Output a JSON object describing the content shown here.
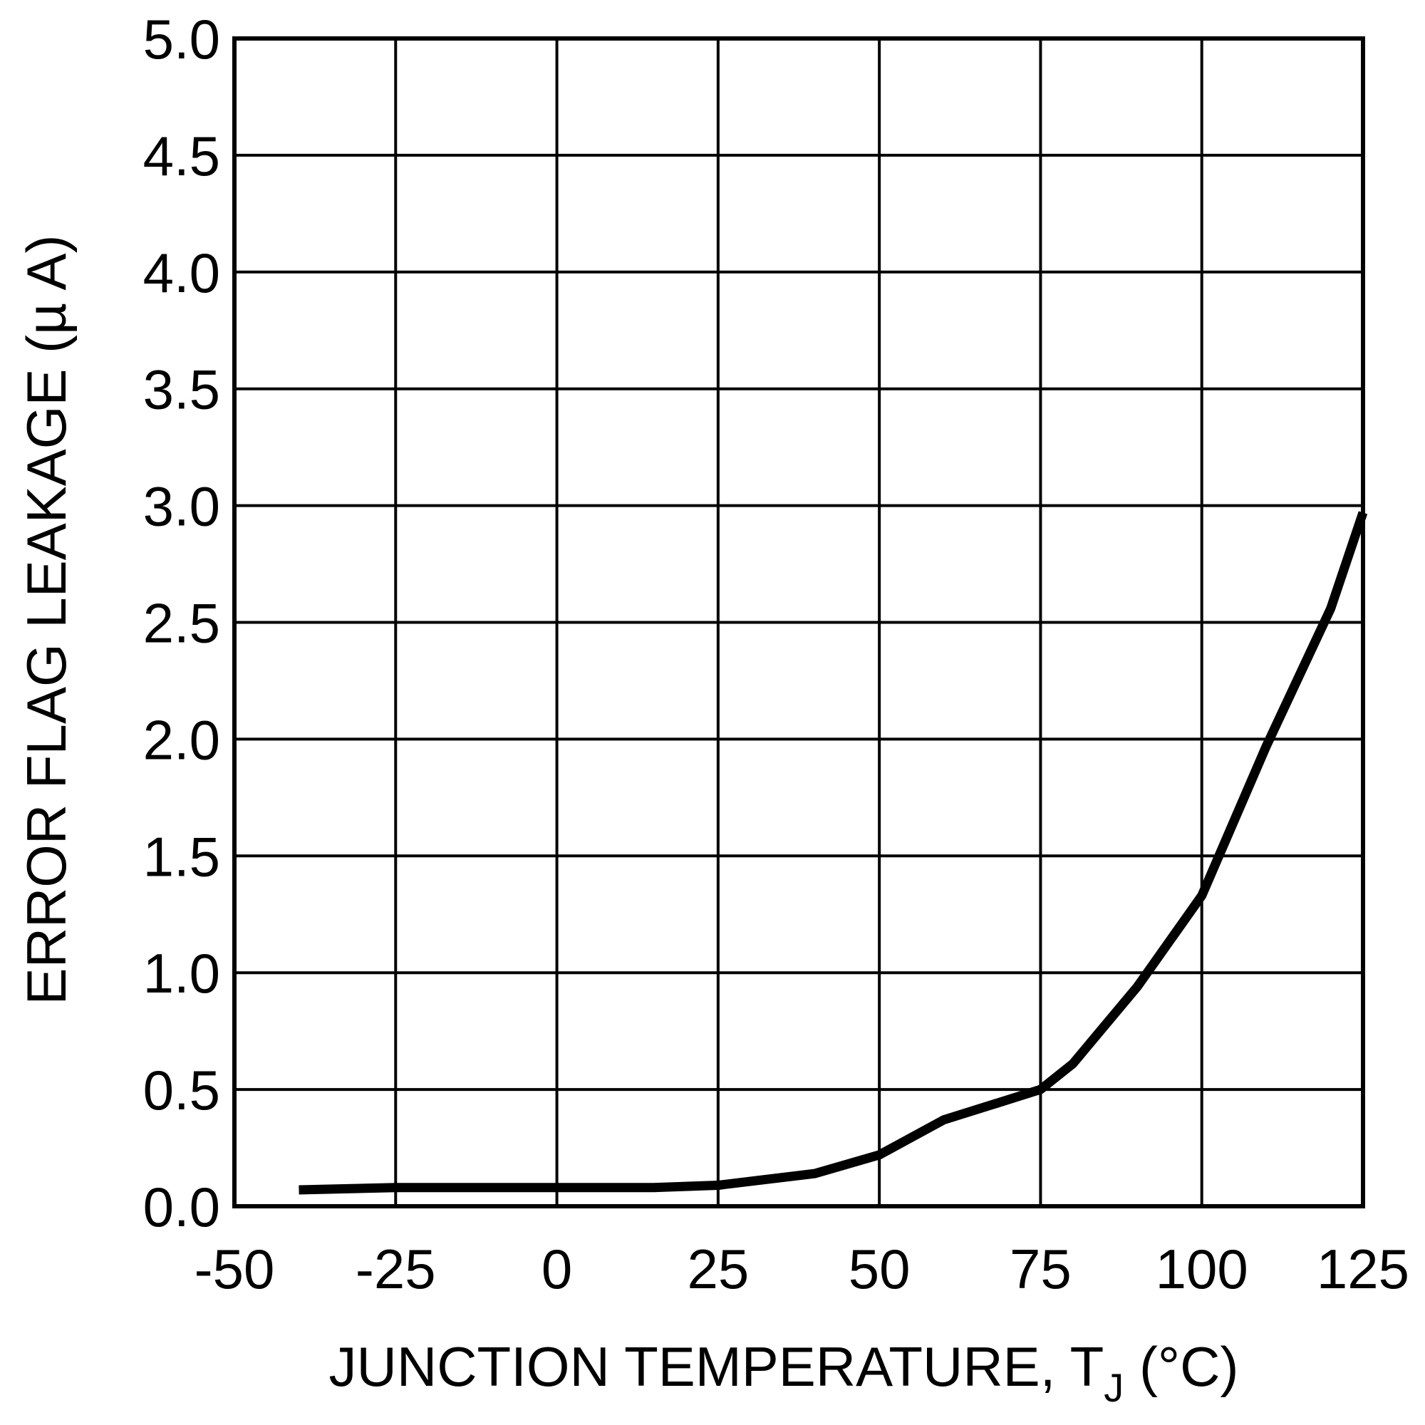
{
  "chart_data": {
    "type": "line",
    "xlabel": {
      "text": "JUNCTION TEMPERATURE, T",
      "subscript": "J",
      "suffix": " (°C)"
    },
    "ylabel": "ERROR FLAG LEAKAGE (µ A)",
    "x": [
      -40,
      -25,
      0,
      15,
      25,
      40,
      50,
      60,
      75,
      80,
      90,
      100,
      110,
      120,
      125
    ],
    "series": [
      {
        "color": "#000000",
        "values": [
          0.07,
          0.08,
          0.08,
          0.08,
          0.09,
          0.14,
          0.22,
          0.37,
          0.5,
          0.61,
          0.94,
          1.33,
          1.97,
          2.56,
          2.97
        ]
      }
    ],
    "xlim": [
      -50,
      125
    ],
    "xticks": [
      -50,
      -25,
      0,
      25,
      50,
      75,
      100,
      125
    ],
    "ylim": [
      0,
      5
    ],
    "yticks": [
      {
        "value": 0,
        "label": "0.0"
      },
      0.5,
      {
        "value": 1,
        "label": "1.0"
      },
      1.5,
      {
        "value": 2,
        "label": "2.0"
      },
      2.5,
      {
        "value": 3,
        "label": "3.0"
      },
      3.5,
      {
        "value": 4,
        "label": "4.0"
      },
      4.5,
      {
        "value": 5,
        "label": "5.0"
      }
    ],
    "grid": true
  }
}
